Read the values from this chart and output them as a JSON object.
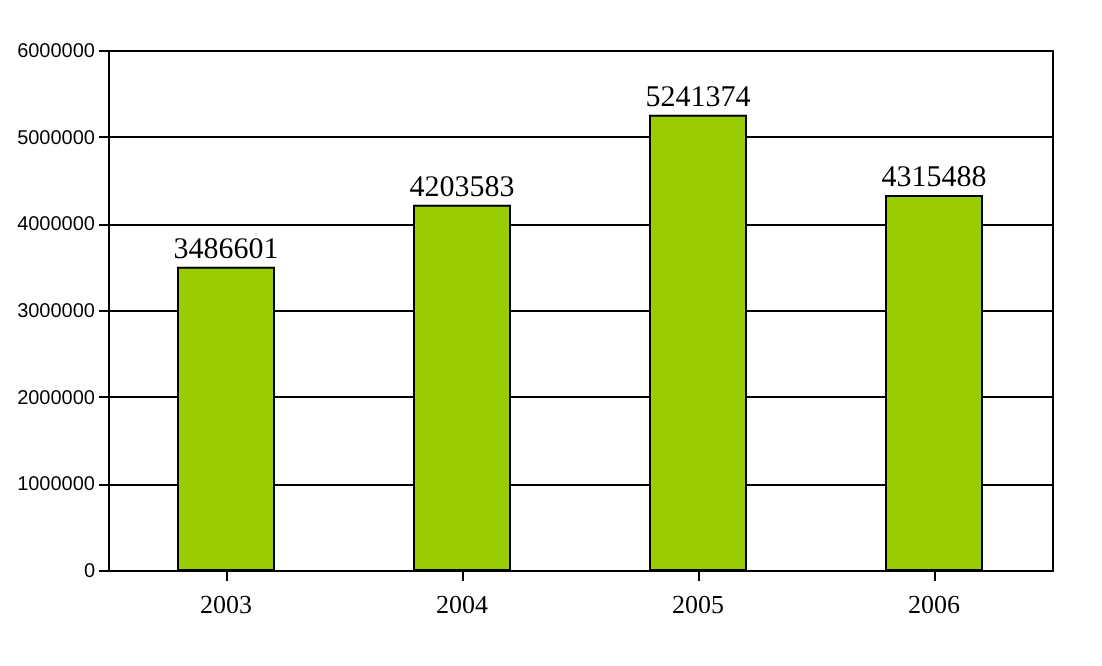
{
  "chart_data": {
    "type": "bar",
    "categories": [
      "2003",
      "2004",
      "2005",
      "2006"
    ],
    "values": [
      3486601,
      4203583,
      5241374,
      4315488
    ],
    "color": "#99cc00",
    "ylim": [
      0,
      6000000
    ],
    "yticks": [
      0,
      1000000,
      2000000,
      3000000,
      4000000,
      5000000,
      6000000
    ],
    "grid": "y",
    "data_labels": true
  }
}
